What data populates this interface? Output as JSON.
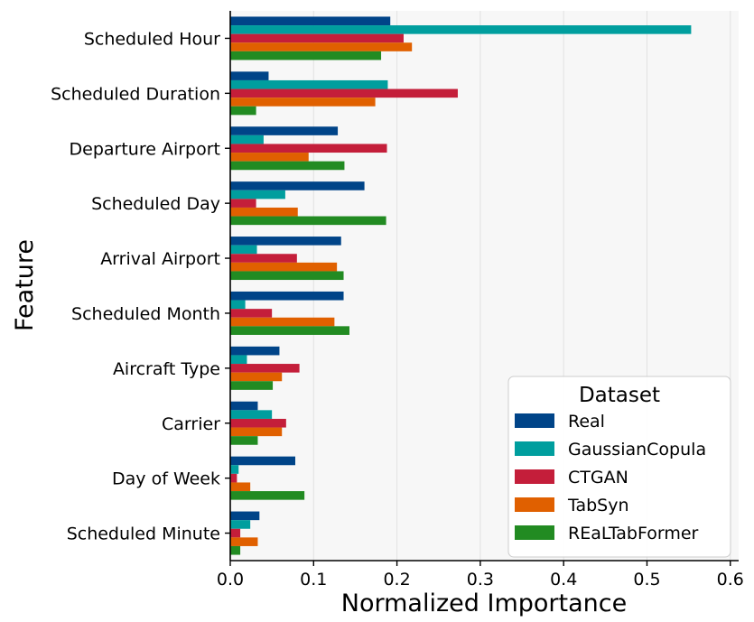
{
  "chart_data": {
    "type": "bar",
    "orientation": "horizontal",
    "title": "",
    "xlabel": "Normalized Importance",
    "ylabel": "Feature",
    "xlim": [
      0,
      0.61
    ],
    "xticks": [
      0.0,
      0.1,
      0.2,
      0.3,
      0.4,
      0.5,
      0.6
    ],
    "xtick_labels": [
      "0.0",
      "0.1",
      "0.2",
      "0.3",
      "0.4",
      "0.5",
      "0.6"
    ],
    "grid": true,
    "legend_title": "Dataset",
    "legend_position": "bottom-right",
    "categories": [
      "Scheduled Hour",
      "Scheduled Duration",
      "Departure Airport",
      "Scheduled Day",
      "Arrival Airport",
      "Scheduled Month",
      "Aircraft Type",
      "Carrier",
      "Day of Week",
      "Scheduled Minute"
    ],
    "series": [
      {
        "name": "Real",
        "color": "#004488",
        "values": [
          0.192,
          0.046,
          0.129,
          0.161,
          0.133,
          0.136,
          0.059,
          0.033,
          0.078,
          0.035
        ]
      },
      {
        "name": "GaussianCopula",
        "color": "#009E9E",
        "values": [
          0.553,
          0.189,
          0.04,
          0.066,
          0.032,
          0.018,
          0.02,
          0.05,
          0.01,
          0.024
        ]
      },
      {
        "name": "CTGAN",
        "color": "#C41E3A",
        "values": [
          0.208,
          0.273,
          0.188,
          0.031,
          0.08,
          0.05,
          0.083,
          0.067,
          0.008,
          0.012
        ]
      },
      {
        "name": "TabSyn",
        "color": "#E06000",
        "values": [
          0.218,
          0.174,
          0.094,
          0.081,
          0.128,
          0.125,
          0.062,
          0.062,
          0.024,
          0.033
        ]
      },
      {
        "name": "REaLTabFormer",
        "color": "#228B22",
        "values": [
          0.181,
          0.031,
          0.137,
          0.187,
          0.136,
          0.143,
          0.051,
          0.033,
          0.089,
          0.012
        ]
      }
    ]
  }
}
